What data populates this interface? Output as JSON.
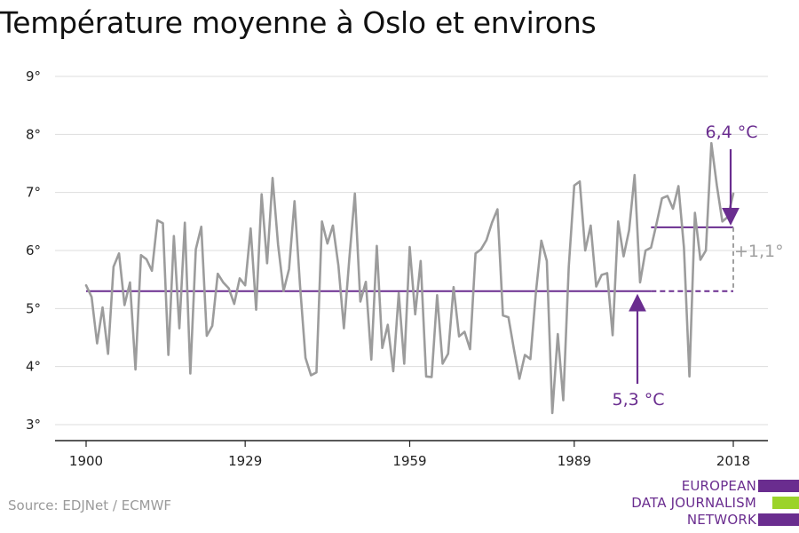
{
  "title": "Température moyenne à Oslo et environs",
  "source": "Source: EDJNet / ECMWF",
  "logo": {
    "lines": [
      "EUROPEAN",
      "DATA JOURNALISM",
      "NETWORK"
    ],
    "colors": [
      "#6a2d8f",
      "#9bd32a",
      "#6a2d8f"
    ]
  },
  "colors": {
    "series": "#9c9c9c",
    "accent": "#6a2d8f",
    "grid": "#dddddd",
    "difference": "#a0a0a0"
  },
  "chart_data": {
    "type": "line",
    "xlim": [
      1900,
      2018
    ],
    "ylim": [
      3,
      9
    ],
    "x_ticks": [
      1900,
      1929,
      1959,
      1989,
      2018
    ],
    "x_tick_labels": [
      "1900",
      "1929",
      "1959",
      "1989",
      "2018"
    ],
    "y_ticks": [
      3,
      4,
      5,
      6,
      7,
      8,
      9
    ],
    "y_tick_labels": [
      "3°",
      "4°",
      "5°",
      "6°",
      "7°",
      "8°",
      "9°"
    ],
    "grid": true,
    "x": [
      1900,
      1901,
      1902,
      1903,
      1904,
      1905,
      1906,
      1907,
      1908,
      1909,
      1910,
      1911,
      1912,
      1913,
      1914,
      1915,
      1916,
      1917,
      1918,
      1919,
      1920,
      1921,
      1922,
      1923,
      1924,
      1925,
      1926,
      1927,
      1928,
      1929,
      1930,
      1931,
      1932,
      1933,
      1934,
      1935,
      1936,
      1937,
      1938,
      1939,
      1940,
      1941,
      1942,
      1943,
      1944,
      1945,
      1946,
      1947,
      1948,
      1949,
      1950,
      1951,
      1952,
      1953,
      1954,
      1955,
      1956,
      1957,
      1958,
      1959,
      1960,
      1961,
      1962,
      1963,
      1964,
      1965,
      1966,
      1967,
      1968,
      1969,
      1970,
      1971,
      1972,
      1973,
      1974,
      1975,
      1976,
      1977,
      1978,
      1979,
      1980,
      1981,
      1982,
      1983,
      1984,
      1985,
      1986,
      1987,
      1988,
      1989,
      1990,
      1991,
      1992,
      1993,
      1994,
      1995,
      1996,
      1997,
      1998,
      1999,
      2000,
      2001,
      2002,
      2003,
      2004,
      2005,
      2006,
      2007,
      2008,
      2009,
      2010,
      2011,
      2012,
      2013,
      2014,
      2015,
      2016,
      2017,
      2018
    ],
    "values": [
      5.4,
      5.2,
      4.4,
      5.02,
      4.22,
      5.72,
      5.95,
      5.06,
      5.45,
      3.95,
      5.92,
      5.85,
      5.65,
      6.52,
      6.47,
      4.2,
      6.25,
      4.66,
      6.48,
      3.88,
      6.02,
      6.41,
      4.53,
      4.7,
      5.6,
      5.45,
      5.35,
      5.08,
      5.52,
      5.4,
      6.38,
      4.98,
      6.97,
      5.78,
      7.25,
      6.1,
      5.3,
      5.68,
      6.85,
      5.4,
      4.15,
      3.85,
      3.9,
      6.5,
      6.12,
      6.43,
      5.74,
      4.66,
      5.87,
      6.98,
      5.12,
      5.46,
      4.12,
      6.08,
      4.32,
      4.72,
      3.92,
      5.27,
      4.05,
      6.06,
      4.9,
      5.82,
      3.83,
      3.82,
      5.23,
      4.05,
      4.22,
      5.37,
      4.52,
      4.6,
      4.3,
      5.95,
      6.02,
      6.18,
      6.48,
      6.71,
      4.88,
      4.85,
      4.3,
      3.79,
      4.2,
      4.13,
      5.27,
      6.17,
      5.82,
      3.2,
      4.56,
      3.42,
      5.72,
      7.12,
      7.19,
      6.0,
      6.43,
      5.38,
      5.58,
      5.61,
      4.54,
      6.5,
      5.9,
      6.35,
      7.3,
      5.45,
      6.0,
      6.05,
      6.46,
      6.9,
      6.94,
      6.72,
      7.11,
      6.05,
      3.83,
      6.65,
      5.84,
      6.0,
      7.85,
      7.12,
      6.5,
      6.58,
      6.98
    ],
    "reference_line": {
      "value": 5.3,
      "from": 1900,
      "to": 2018,
      "dashed_from": 2003
    },
    "recent_line": {
      "value": 6.4,
      "from": 2003,
      "to": 2018
    },
    "annotations": {
      "recent_label": "6,4 °C",
      "reference_label": "5,3 °C",
      "difference_label": "+1,1°"
    }
  }
}
